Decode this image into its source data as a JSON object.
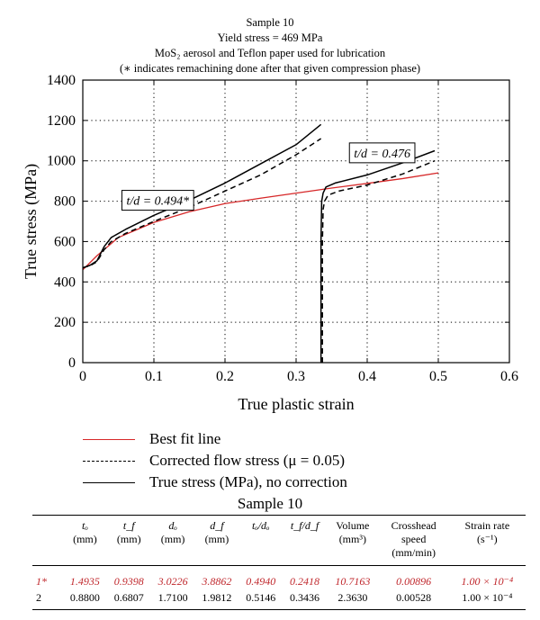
{
  "title_lines": [
    "Sample 10",
    "Yield stress = 469 MPa",
    "MoS₂ aerosol and Teflon paper used for lubrication",
    "(∗ indicates remachining done after that given compression phase)"
  ],
  "chart_data": {
    "type": "line",
    "xlabel": "True plastic strain",
    "ylabel": "True stress (MPa)",
    "xlim": [
      0,
      0.6
    ],
    "ylim": [
      0,
      1400
    ],
    "x_ticks": [
      "0",
      "0.1",
      "0.2",
      "0.3",
      "0.4",
      "0.5",
      "0.6"
    ],
    "y_ticks": [
      "0",
      "200",
      "400",
      "600",
      "800",
      "1000",
      "1200",
      "1400"
    ],
    "grid": "dotted",
    "annotations": [
      {
        "text": "t/d = 0.494*",
        "x": 0.055,
        "y": 800
      },
      {
        "text": "t/d = 0.476",
        "x": 0.375,
        "y": 1035
      }
    ],
    "series": [
      {
        "name": "Best fit line",
        "color": "#d62728",
        "style": "solid",
        "x": [
          0,
          0.02,
          0.05,
          0.1,
          0.15,
          0.2,
          0.25,
          0.3,
          0.35,
          0.4,
          0.45,
          0.5
        ],
        "y": [
          460,
          530,
          620,
          695,
          748,
          788,
          815,
          840,
          865,
          888,
          912,
          940
        ]
      },
      {
        "name": "Corrected flow stress (μ = 0.05)",
        "color": "#000000",
        "style": "dashed",
        "x": [
          0,
          0.005,
          0.01,
          0.02,
          0.03,
          0.04,
          0.06,
          0.1,
          0.15,
          0.2,
          0.25,
          0.3,
          0.335
        ],
        "y": [
          470,
          475,
          480,
          500,
          560,
          600,
          640,
          700,
          770,
          850,
          930,
          1030,
          1110
        ]
      },
      {
        "name": "Corrected flow stress (μ = 0.05)",
        "color": "#000000",
        "style": "dashed",
        "x": [
          0.337,
          0.337,
          0.338,
          0.34,
          0.345,
          0.36,
          0.4,
          0.45,
          0.495
        ],
        "y": [
          0,
          600,
          760,
          800,
          830,
          850,
          880,
          935,
          1000
        ]
      },
      {
        "name": "True stress (MPa), no correction",
        "color": "#000000",
        "style": "solid",
        "x": [
          0,
          0.005,
          0.01,
          0.02,
          0.03,
          0.04,
          0.06,
          0.1,
          0.15,
          0.2,
          0.25,
          0.3,
          0.335
        ],
        "y": [
          470,
          476,
          482,
          505,
          575,
          620,
          660,
          730,
          805,
          890,
          985,
          1080,
          1180
        ]
      },
      {
        "name": "True stress (MPa), no correction",
        "color": "#000000",
        "style": "solid",
        "x": [
          0.335,
          0.335,
          0.336,
          0.338,
          0.342,
          0.355,
          0.4,
          0.45,
          0.495
        ],
        "y": [
          0,
          600,
          800,
          840,
          870,
          890,
          930,
          990,
          1050
        ]
      }
    ]
  },
  "legend": [
    {
      "label": "Best fit line",
      "color": "#d62728",
      "style": "solid"
    },
    {
      "label": "Corrected flow stress (μ = 0.05)",
      "color": "#000000",
      "style": "dashed"
    },
    {
      "label": "True stress (MPa), no correction",
      "color": "#000000",
      "style": "solid"
    }
  ],
  "table": {
    "title": "Sample 10",
    "headers": [
      {
        "sym": "",
        "unit": ""
      },
      {
        "sym": "tₒ",
        "unit": "(mm)"
      },
      {
        "sym": "t_f",
        "unit": "(mm)"
      },
      {
        "sym": "dₒ",
        "unit": "(mm)"
      },
      {
        "sym": "d_f",
        "unit": "(mm)"
      },
      {
        "sym": "tₒ/dₒ",
        "unit": ""
      },
      {
        "sym": "t_f/d_f",
        "unit": ""
      },
      {
        "sym": "Volume",
        "unit": "(mm³)"
      },
      {
        "sym": "Crosshead speed",
        "unit": "(mm/min)"
      },
      {
        "sym": "Strain rate",
        "unit": "(s⁻¹)"
      }
    ],
    "rows": [
      {
        "cells": [
          "1*",
          "1.4935",
          "0.9398",
          "3.0226",
          "3.8862",
          "0.4940",
          "0.2418",
          "10.7163",
          "0.00896",
          "1.00 × 10⁻⁴"
        ],
        "color": "#c0282d",
        "italic": true
      },
      {
        "cells": [
          "2",
          "0.8800",
          "0.6807",
          "1.7100",
          "1.9812",
          "0.5146",
          "0.3436",
          "2.3630",
          "0.00528",
          "1.00 × 10⁻⁴"
        ],
        "color": "#000000",
        "italic": false
      }
    ]
  }
}
